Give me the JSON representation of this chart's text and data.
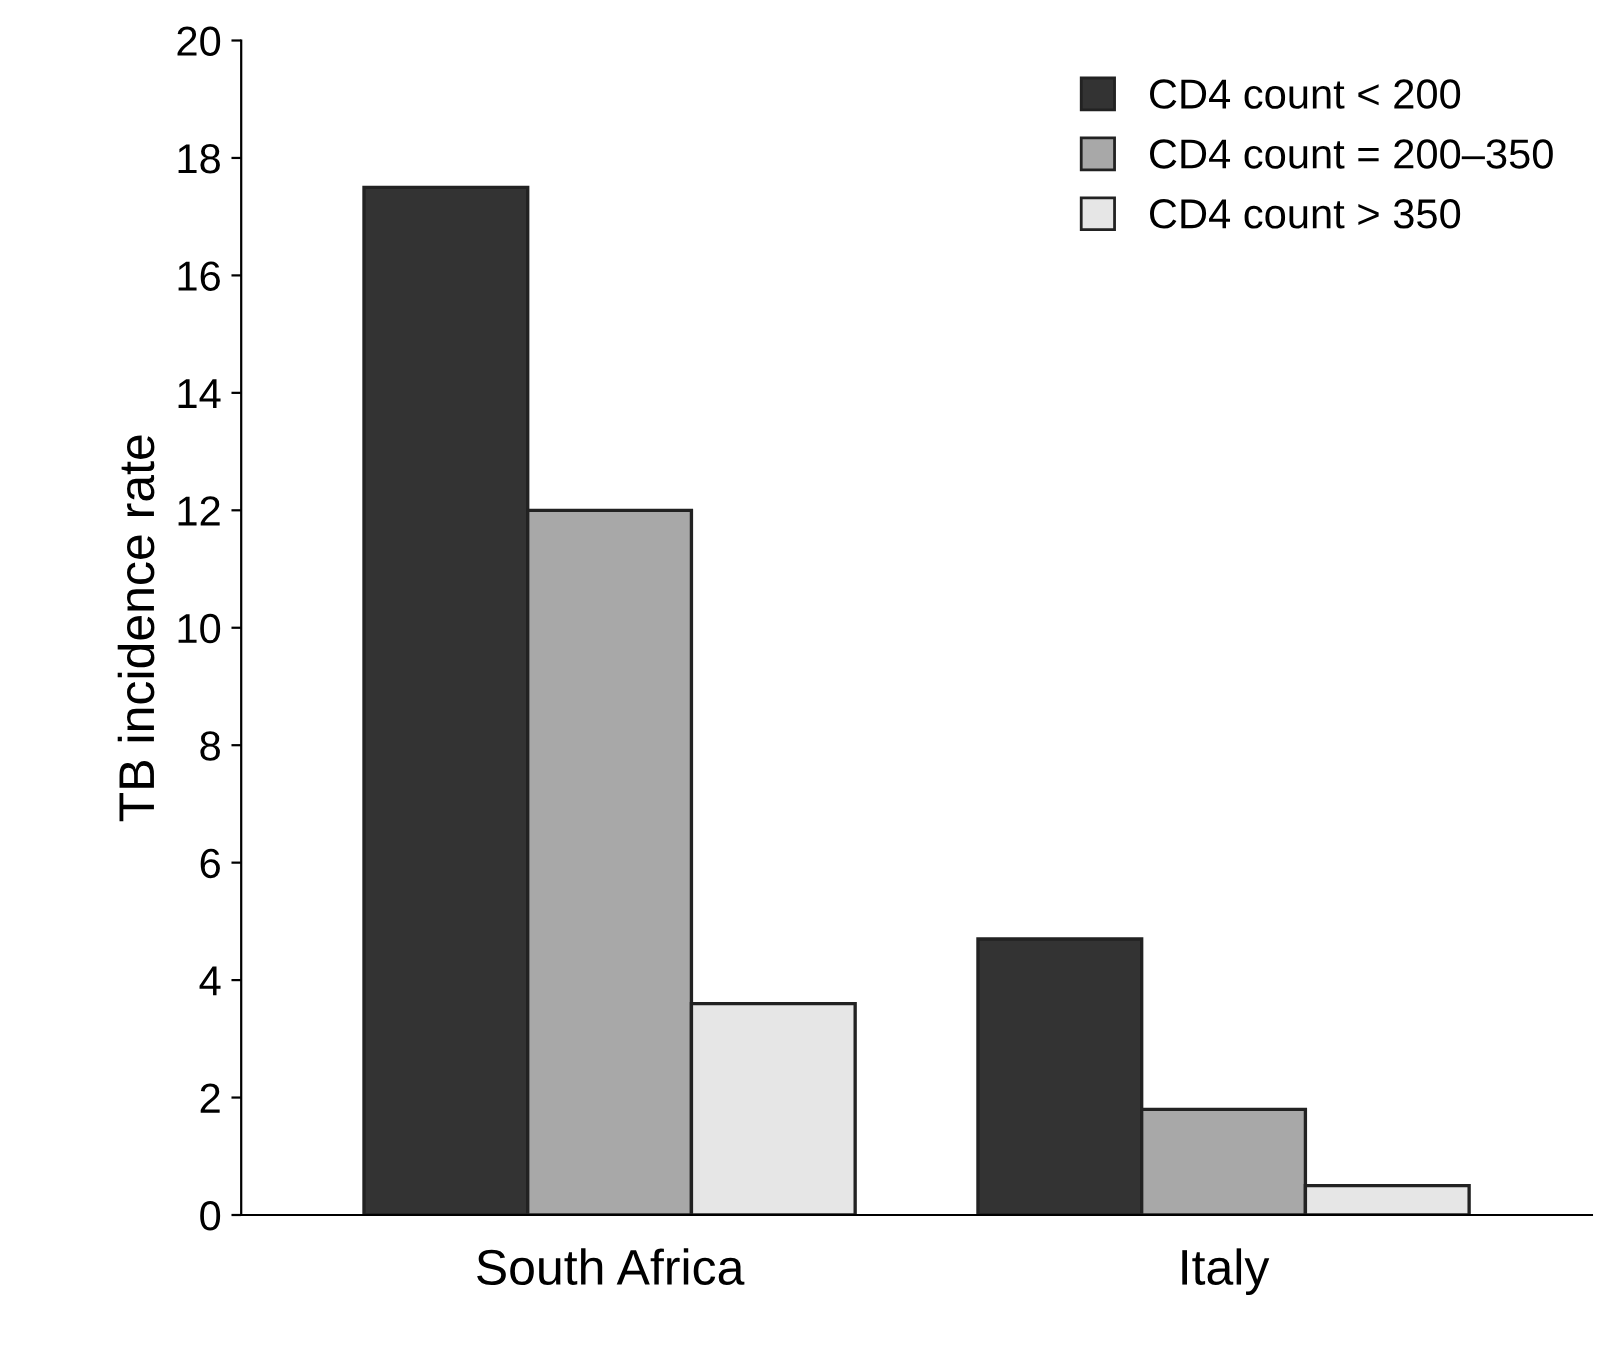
{
  "chart_data": {
    "type": "bar",
    "ylabel": "TB incidence rate",
    "categories": [
      "South Africa",
      "Italy"
    ],
    "series": [
      {
        "name": "CD4 count < 200",
        "color": "#333333",
        "values": [
          17.5,
          4.7
        ]
      },
      {
        "name": "CD4 count = 200–350",
        "color": "#a8a8a8",
        "values": [
          12.0,
          1.8
        ]
      },
      {
        "name": "CD4 count > 350",
        "color": "#e6e6e6",
        "values": [
          3.6,
          0.5
        ]
      }
    ],
    "ylim": [
      0,
      20
    ],
    "yticks": [
      0,
      2,
      4,
      6,
      8,
      10,
      12,
      14,
      16,
      18,
      20
    ],
    "grid": false,
    "legend": "top right"
  }
}
